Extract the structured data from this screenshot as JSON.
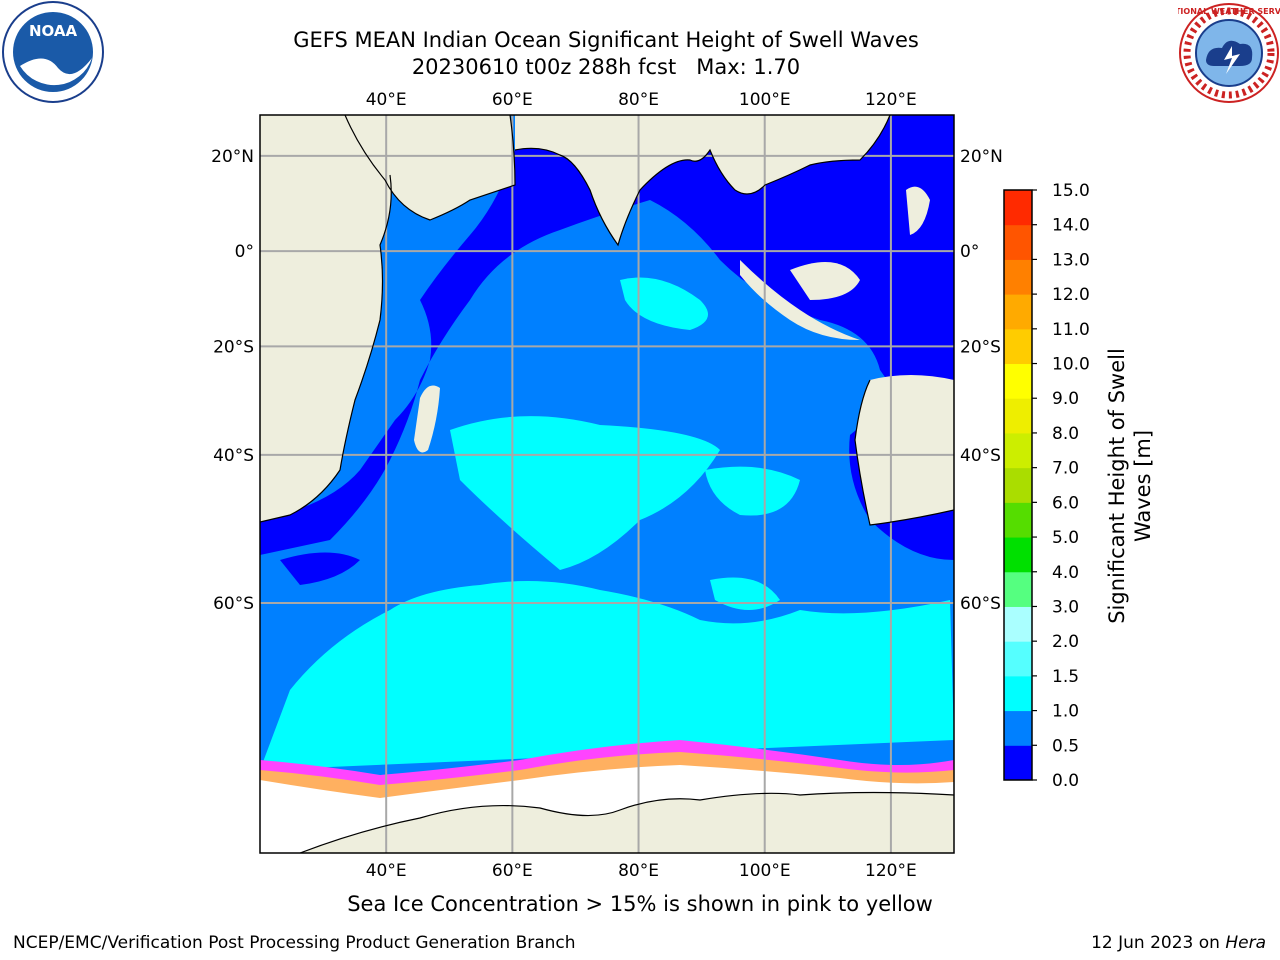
{
  "title": {
    "line1": "GEFS MEAN Indian Ocean Significant Height of Swell Waves",
    "line2": "20230610 t00z 288h fcst   Max: 1.70"
  },
  "map": {
    "lon_labels": [
      "40°E",
      "60°E",
      "80°E",
      "100°E",
      "120°E"
    ],
    "lat_labels": [
      "20°N",
      "0°",
      "20°S",
      "40°S",
      "60°S"
    ],
    "lon_values": [
      40,
      60,
      80,
      100,
      120
    ],
    "lat_values": [
      20,
      0,
      -20,
      -40,
      -60
    ],
    "lon_range": [
      20,
      130
    ],
    "lat_range": [
      -78,
      28
    ],
    "grid": true
  },
  "colorbar": {
    "label": "Significant Height of Swell Waves [m]",
    "levels": [
      "0.0",
      "0.5",
      "1.0",
      "1.5",
      "2.0",
      "3.0",
      "4.0",
      "5.0",
      "6.0",
      "7.0",
      "8.0",
      "9.0",
      "10.0",
      "11.0",
      "12.0",
      "13.0",
      "14.0",
      "15.0"
    ],
    "colors": [
      "#0000ff",
      "#0080ff",
      "#00ffff",
      "#55ffff",
      "#aaffff",
      "#55ff80",
      "#00e000",
      "#55dd00",
      "#aadd00",
      "#ccee00",
      "#eeee00",
      "#ffff00",
      "#ffcc00",
      "#ffaa00",
      "#ff8000",
      "#ff5500",
      "#ff2a00"
    ]
  },
  "colors": {
    "land": "#eeeedd",
    "ocean_shelf": "#0000ff",
    "ocean_main": "#0080ff",
    "swell_high": "#00ffff",
    "sea_ice_edge": "#ff44ff",
    "sea_ice_body": "#ffffff",
    "sea_ice_yellow": "#ffb060"
  },
  "logos": {
    "noaa_text": "NOAA",
    "nws_text": "NATIONAL WEATHER SERVICE"
  },
  "note": "Sea Ice Concentration > 15% is shown in pink to yellow",
  "footer": {
    "left": "NCEP/EMC/Verification Post Processing Product Generation Branch",
    "right_date": "12 Jun 2023 on ",
    "right_machine": "Hera"
  }
}
